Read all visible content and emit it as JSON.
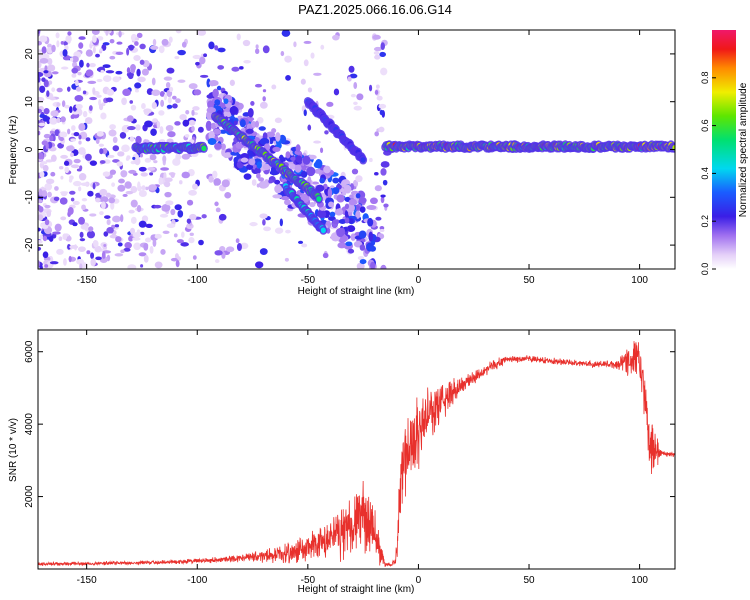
{
  "title": "PAZ1.2025.066.16.06.G14",
  "chart_data": [
    {
      "type": "heatmap",
      "xlabel": "Height of straight line (km)",
      "ylabel": "Frequency (Hz)",
      "xlim": [
        -172,
        116
      ],
      "ylim": [
        -25,
        25
      ],
      "xticks": [
        -150,
        -100,
        -50,
        0,
        50,
        100
      ],
      "yticks": [
        -20,
        -10,
        0,
        10,
        20
      ],
      "xtick_labels": [
        "-150",
        "-100",
        "-50",
        "0",
        "50",
        "100"
      ],
      "ytick_labels": [
        "-20",
        "-10",
        "0",
        "10",
        "20"
      ],
      "colorbar": {
        "label": "Normalized spectral amplitude",
        "range": [
          0,
          1
        ],
        "ticks": [
          0.0,
          0.2,
          0.4,
          0.6,
          0.8
        ],
        "tick_labels": [
          "0.0",
          "0.2",
          "0.4",
          "0.6",
          "0.8"
        ],
        "colormap": "rainbow (white-violet-blue-cyan-green-yellow-red-magenta)"
      },
      "features": [
        {
          "name": "main tone",
          "x_range": [
            -128,
            -97
          ],
          "freq_hz": 0.3,
          "amplitude": 0.55
        },
        {
          "name": "descending track",
          "x_range": [
            -92,
            -45
          ],
          "freq_start": 7,
          "freq_end": -10,
          "amplitude": 0.6
        },
        {
          "name": "steep track",
          "x_range": [
            -60,
            -43
          ],
          "freq_start": -8,
          "freq_end": -17,
          "amplitude": 0.4
        },
        {
          "name": "converging track",
          "x_range": [
            -50,
            -25
          ],
          "freq_start": 10,
          "freq_end": -2,
          "amplitude": 0.25
        },
        {
          "name": "carrier line",
          "x_range": [
            -15,
            116
          ],
          "freq_hz": 0.6,
          "amplitude": 0.65
        }
      ]
    },
    {
      "type": "line",
      "xlabel": "Height of straight line (km)",
      "ylabel": "SNR (10 * v/v)",
      "xlim": [
        -172,
        116
      ],
      "ylim": [
        0,
        6600
      ],
      "xticks": [
        -150,
        -100,
        -50,
        0,
        50,
        100
      ],
      "yticks": [
        2000,
        4000,
        6000
      ],
      "xtick_labels": [
        "-150",
        "-100",
        "-50",
        "0",
        "50",
        "100"
      ],
      "ytick_labels": [
        "2000",
        "4000",
        "6000"
      ],
      "color": "#e8302c",
      "x": [
        -172,
        -150,
        -120,
        -100,
        -80,
        -60,
        -50,
        -40,
        -30,
        -25,
        -20,
        -15,
        -12,
        -10,
        -8,
        -5,
        0,
        5,
        10,
        20,
        30,
        40,
        50,
        60,
        70,
        80,
        90,
        95,
        100,
        102,
        105,
        110,
        116
      ],
      "y": [
        130,
        150,
        180,
        220,
        300,
        420,
        560,
        800,
        1250,
        1500,
        950,
        130,
        100,
        300,
        2800,
        3300,
        3800,
        4300,
        4600,
        5100,
        5500,
        5800,
        5800,
        5750,
        5700,
        5650,
        5650,
        5800,
        5800,
        4800,
        3300,
        3200,
        3150
      ],
      "spread": [
        60,
        60,
        70,
        80,
        120,
        300,
        500,
        700,
        1000,
        1200,
        900,
        80,
        60,
        400,
        1400,
        1500,
        1200,
        900,
        700,
        300,
        200,
        130,
        110,
        100,
        100,
        110,
        150,
        600,
        700,
        800,
        900,
        120,
        60
      ]
    }
  ]
}
